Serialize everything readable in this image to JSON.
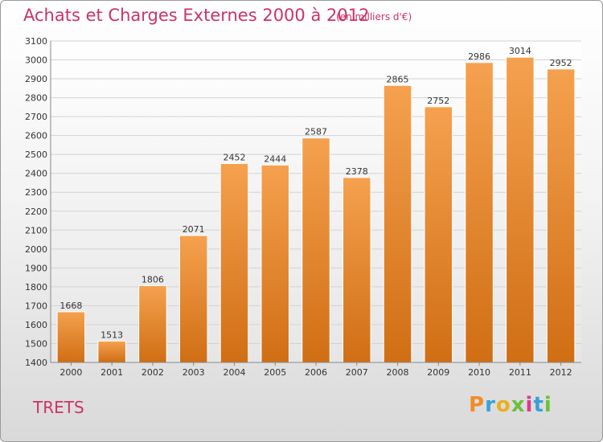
{
  "header": {
    "title": "Achats et Charges Externes 2000 à 2012",
    "unit": "(en milliers d'€)"
  },
  "footer": {
    "commune": "TRETS",
    "logo_letters": [
      "P",
      "r",
      "o",
      "x",
      "i",
      "t",
      "i"
    ],
    "logo_colors": [
      "#f28c28",
      "#3aa0d8",
      "#e8b020",
      "#6cbf3c",
      "#d83c8c",
      "#3aa0d8",
      "#6cbf3c"
    ]
  },
  "chart_data": {
    "type": "bar",
    "categories": [
      "2000",
      "2001",
      "2002",
      "2003",
      "2004",
      "2005",
      "2006",
      "2007",
      "2008",
      "2009",
      "2010",
      "2011",
      "2012"
    ],
    "values": [
      1668,
      1513,
      1806,
      2071,
      2452,
      2444,
      2587,
      2378,
      2865,
      2752,
      2986,
      3014,
      2952
    ],
    "ylim": [
      1400,
      3100
    ],
    "yticks": [
      1400,
      1500,
      1600,
      1700,
      1800,
      1900,
      2000,
      2100,
      2200,
      2300,
      2400,
      2500,
      2600,
      2700,
      2800,
      2900,
      3000,
      3100
    ],
    "grid": true,
    "bar_color_top": "#f5a14f",
    "bar_color_bottom": "#d06e14"
  }
}
